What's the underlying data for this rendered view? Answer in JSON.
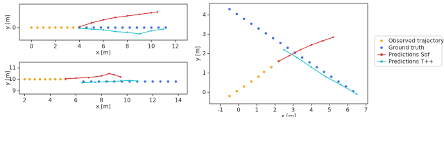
{
  "chart_data": [
    {
      "type": "scatter",
      "x_label": "x [m]",
      "y_label": "y [m]",
      "xlim": [
        -1,
        13
      ],
      "ylim": [
        -0.8,
        1.5
      ],
      "xticks": [
        0,
        2,
        4,
        6,
        8,
        10,
        12
      ],
      "yticks": [
        0
      ],
      "series": [
        {
          "name": "Observed trajectory",
          "style": "markers",
          "color": "#f5a31a",
          "x": [
            0,
            0.5,
            1,
            1.5,
            2,
            2.5,
            3,
            3.5
          ],
          "values": [
            0,
            0,
            0,
            0,
            0,
            0,
            0,
            0
          ]
        },
        {
          "name": "Ground truth",
          "style": "markers",
          "color": "#3a6fe0",
          "x": [
            4,
            4.6,
            5.2,
            5.8,
            6.4,
            7,
            7.6,
            8.2,
            8.8,
            9.4,
            10,
            10.6,
            11.2
          ],
          "values": [
            0,
            0,
            0,
            0,
            0,
            0,
            0,
            0,
            0,
            0,
            0,
            0,
            0
          ]
        },
        {
          "name": "Predictions Sof",
          "style": "line",
          "color": "#d62728",
          "x": [
            4,
            5,
            6,
            7,
            8,
            9,
            10,
            10.5
          ],
          "values": [
            0.05,
            0.3,
            0.5,
            0.65,
            0.75,
            0.85,
            0.95,
            1
          ]
        },
        {
          "name": "Predictions T++",
          "style": "line",
          "color": "#17becf",
          "x": [
            4,
            5,
            6,
            7,
            8,
            9,
            10,
            11
          ],
          "values": [
            -0.05,
            -0.1,
            -0.15,
            -0.25,
            -0.3,
            -0.4,
            -0.2,
            -0.1
          ]
        }
      ]
    },
    {
      "type": "scatter",
      "x_label": "x [m]",
      "y_label": "y [m]",
      "xlim": [
        1.6,
        14.7
      ],
      "ylim": [
        8.7,
        11.5
      ],
      "xticks": [
        2,
        4,
        6,
        8,
        10,
        12,
        14
      ],
      "yticks": [
        9,
        10,
        11
      ],
      "series": [
        {
          "name": "Observed trajectory",
          "style": "markers",
          "color": "#f5a31a",
          "x": [
            2,
            2.4,
            2.8,
            3.2,
            3.6,
            4,
            4.4,
            4.8,
            5.2
          ],
          "values": [
            10,
            10,
            10,
            10,
            10,
            10,
            10,
            10,
            10
          ]
        },
        {
          "name": "Ground truth",
          "style": "markers",
          "color": "#3a6fe0",
          "x": [
            6.6,
            7.2,
            7.8,
            8.4,
            9,
            9.6,
            10.2,
            10.8,
            11.4,
            12,
            12.6,
            13.2,
            13.8
          ],
          "values": [
            9.8,
            9.8,
            9.8,
            9.8,
            9.8,
            9.8,
            9.8,
            9.8,
            9.8,
            9.8,
            9.8,
            9.8,
            9.8
          ]
        },
        {
          "name": "Predictions Sof",
          "style": "line",
          "color": "#d62728",
          "x": [
            5.2,
            6,
            7,
            8,
            8.6,
            9,
            9.5
          ],
          "values": [
            10.05,
            10.1,
            10.15,
            10.3,
            10.5,
            10.4,
            10.2
          ]
        },
        {
          "name": "Predictions T++",
          "style": "line",
          "color": "#17becf",
          "x": [
            6.5,
            7.5,
            8.5,
            9.5,
            10.2,
            10.8
          ],
          "values": [
            9.7,
            9.75,
            9.8,
            9.85,
            9.9,
            9.85
          ]
        }
      ]
    },
    {
      "type": "scatter",
      "x_label": "x [m]",
      "y_label": "y [m]",
      "legend": "outside right",
      "xlim": [
        -1.6,
        7.1
      ],
      "ylim": [
        -0.6,
        4.6
      ],
      "xticks": [
        -1,
        0,
        1,
        2,
        3,
        4,
        5,
        6,
        7
      ],
      "yticks": [
        0,
        1,
        2,
        3,
        4
      ],
      "series": [
        {
          "name": "Observed trajectory",
          "style": "markers",
          "color": "#f5a31a",
          "x": [
            -0.5,
            -0.1,
            0.3,
            0.7,
            1.1,
            1.4,
            1.8,
            2.2
          ],
          "values": [
            -0.2,
            0.05,
            0.3,
            0.55,
            0.8,
            1.05,
            1.3,
            1.6
          ]
        },
        {
          "name": "Ground truth",
          "style": "markers",
          "color": "#3a6fe0",
          "x": [
            -0.5,
            -0.1,
            0.3,
            0.7,
            1.1,
            1.5,
            1.9,
            2.3,
            2.7,
            3.1,
            3.5,
            3.9,
            4.3,
            4.7,
            5.1,
            5.5,
            5.9,
            6.3
          ],
          "values": [
            4.3,
            4.05,
            3.8,
            3.55,
            3.3,
            3.05,
            2.8,
            2.55,
            2.3,
            2.05,
            1.8,
            1.55,
            1.3,
            1.05,
            0.8,
            0.55,
            0.3,
            0.05
          ]
        },
        {
          "name": "Predictions Sof",
          "style": "line",
          "color": "#d62728",
          "x": [
            2.2,
            2.8,
            3.4,
            4,
            4.6,
            5.2
          ],
          "values": [
            1.6,
            1.9,
            2.2,
            2.45,
            2.65,
            2.85
          ]
        },
        {
          "name": "Predictions T++",
          "style": "line",
          "color": "#17becf",
          "x": [
            2.5,
            3.2,
            4,
            4.8,
            5.6,
            6.5
          ],
          "values": [
            2.2,
            1.8,
            1.3,
            0.8,
            0.4,
            -0.1
          ]
        }
      ]
    }
  ]
}
